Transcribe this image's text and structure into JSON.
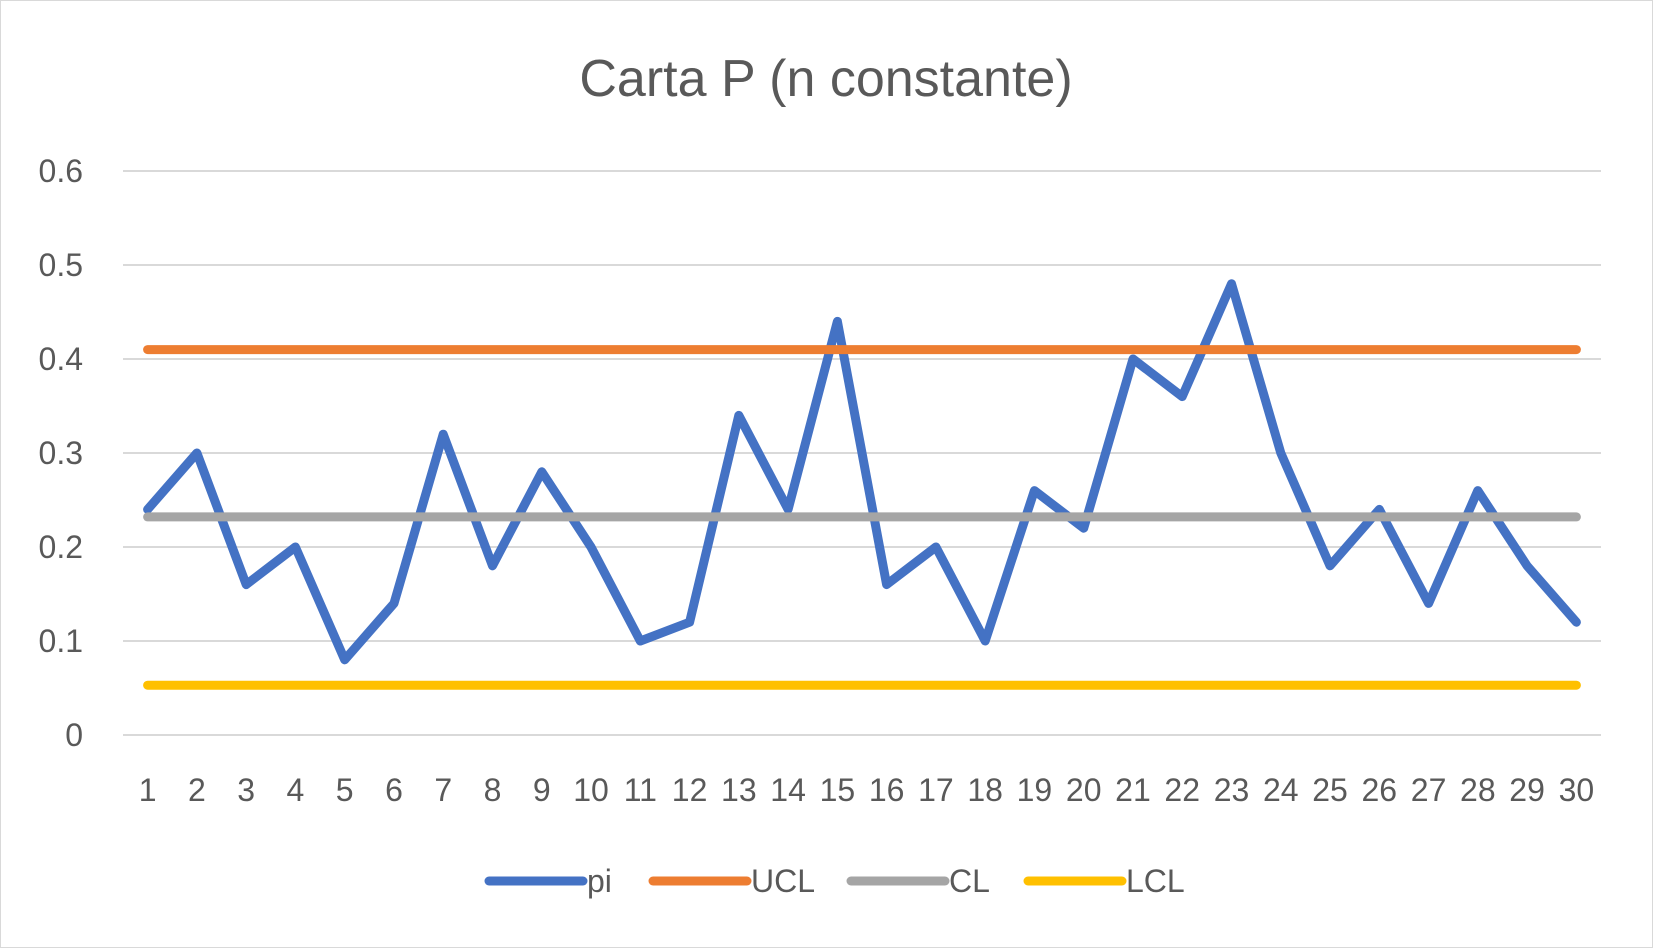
{
  "chart_data": {
    "type": "line",
    "title": "Carta P (n constante)",
    "xlabel": "",
    "ylabel": "",
    "categories": [
      "1",
      "2",
      "3",
      "4",
      "5",
      "6",
      "7",
      "8",
      "9",
      "10",
      "11",
      "12",
      "13",
      "14",
      "15",
      "16",
      "17",
      "18",
      "19",
      "20",
      "21",
      "22",
      "23",
      "24",
      "25",
      "26",
      "27",
      "28",
      "29",
      "30"
    ],
    "y_ticks": [
      "0",
      "0.1",
      "0.2",
      "0.3",
      "0.4",
      "0.5",
      "0.6"
    ],
    "ylim": [
      0,
      0.6
    ],
    "grid": true,
    "legend_position": "bottom",
    "series": [
      {
        "name": "pi",
        "color": "#4472C4",
        "values": [
          0.24,
          0.3,
          0.16,
          0.2,
          0.08,
          0.14,
          0.32,
          0.18,
          0.28,
          0.2,
          0.1,
          0.12,
          0.34,
          0.24,
          0.44,
          0.16,
          0.2,
          0.1,
          0.26,
          0.22,
          0.4,
          0.36,
          0.48,
          0.3,
          0.18,
          0.24,
          0.14,
          0.26,
          0.18,
          0.12
        ]
      },
      {
        "name": "UCL",
        "color": "#ED7D31",
        "values": [
          0.41,
          0.41,
          0.41,
          0.41,
          0.41,
          0.41,
          0.41,
          0.41,
          0.41,
          0.41,
          0.41,
          0.41,
          0.41,
          0.41,
          0.41,
          0.41,
          0.41,
          0.41,
          0.41,
          0.41,
          0.41,
          0.41,
          0.41,
          0.41,
          0.41,
          0.41,
          0.41,
          0.41,
          0.41,
          0.41
        ]
      },
      {
        "name": "CL",
        "color": "#A5A5A5",
        "values": [
          0.232,
          0.232,
          0.232,
          0.232,
          0.232,
          0.232,
          0.232,
          0.232,
          0.232,
          0.232,
          0.232,
          0.232,
          0.232,
          0.232,
          0.232,
          0.232,
          0.232,
          0.232,
          0.232,
          0.232,
          0.232,
          0.232,
          0.232,
          0.232,
          0.232,
          0.232,
          0.232,
          0.232,
          0.232,
          0.232
        ]
      },
      {
        "name": "LCL",
        "color": "#FFC000",
        "values": [
          0.053,
          0.053,
          0.053,
          0.053,
          0.053,
          0.053,
          0.053,
          0.053,
          0.053,
          0.053,
          0.053,
          0.053,
          0.053,
          0.053,
          0.053,
          0.053,
          0.053,
          0.053,
          0.053,
          0.053,
          0.053,
          0.053,
          0.053,
          0.053,
          0.053,
          0.053,
          0.053,
          0.053,
          0.053,
          0.053
        ]
      }
    ]
  }
}
